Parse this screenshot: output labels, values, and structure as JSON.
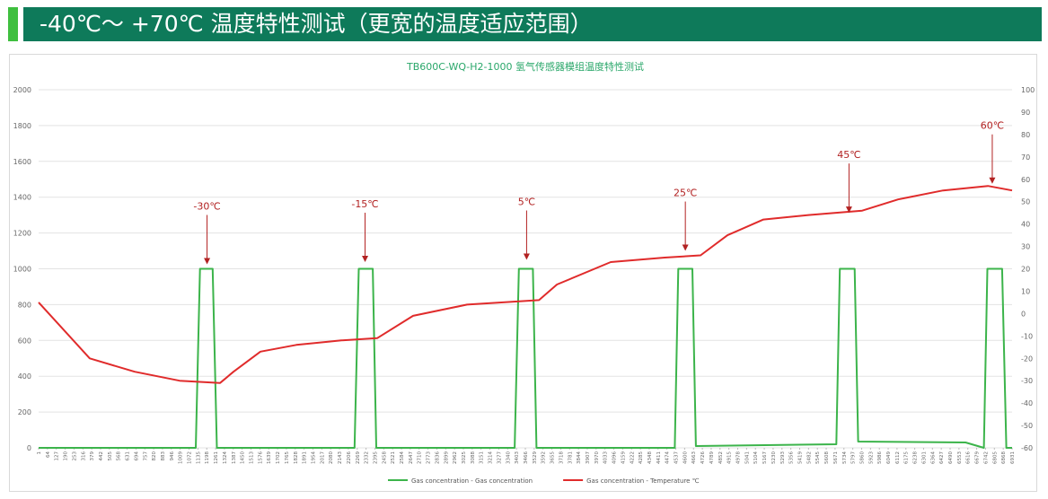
{
  "header": {
    "title": "-40℃～ +70℃ 温度特性测试（更宽的温度适应范围）"
  },
  "chart_data": {
    "type": "line",
    "title": "TB600C-WQ-H2-1000 氢气传感器模组温度特性测试",
    "title_color": "#2aa76a",
    "xlim": [
      1,
      6931
    ],
    "xticks": [
      1,
      64,
      127,
      190,
      253,
      316,
      379,
      442,
      505,
      568,
      631,
      694,
      757,
      820,
      883,
      946,
      1009,
      1072,
      1135,
      1198,
      1261,
      1324,
      1387,
      1450,
      1513,
      1576,
      1639,
      1702,
      1765,
      1828,
      1891,
      1954,
      2017,
      2080,
      2143,
      2206,
      2269,
      2332,
      2395,
      2458,
      2521,
      2584,
      2647,
      2710,
      2773,
      2836,
      2899,
      2962,
      3025,
      3088,
      3151,
      3214,
      3277,
      3340,
      3403,
      3466,
      3529,
      3592,
      3655,
      3718,
      3781,
      3844,
      3907,
      3970,
      4033,
      4096,
      4159,
      4222,
      4285,
      4348,
      4411,
      4474,
      4537,
      4600,
      4663,
      4726,
      4789,
      4852,
      4915,
      4978,
      5041,
      5104,
      5167,
      5230,
      5293,
      5356,
      5419,
      5482,
      5545,
      5608,
      5671,
      5734,
      5797,
      5860,
      5923,
      5986,
      6049,
      6112,
      6175,
      6238,
      6301,
      6364,
      6427,
      6490,
      6553,
      6616,
      6679,
      6742,
      6805,
      6868,
      6931
    ],
    "ylim": [
      0,
      2000
    ],
    "yticks": [
      0,
      200,
      400,
      600,
      800,
      1000,
      1200,
      1400,
      1600,
      1800,
      2000
    ],
    "y2lim": [
      -60,
      100
    ],
    "y2ticks": [
      -60,
      -50,
      -40,
      -30,
      -20,
      -10,
      0,
      10,
      20,
      30,
      40,
      50,
      60,
      70,
      80,
      90,
      100
    ],
    "grid": true,
    "legend": "bottom",
    "series": [
      {
        "name": "Gas concentration - Gas concentration",
        "color": "#3cb44b",
        "axis": "y",
        "x": [
          1,
          1120,
          1150,
          1240,
          1270,
          2250,
          2280,
          2380,
          2405,
          3390,
          3420,
          3520,
          3545,
          4530,
          4555,
          4655,
          4680,
          5680,
          5705,
          5810,
          5835,
          6600,
          6730,
          6755,
          6860,
          6890,
          6931
        ],
        "values": [
          0,
          0,
          1000,
          1000,
          0,
          0,
          1000,
          1000,
          0,
          0,
          1000,
          1000,
          0,
          0,
          1000,
          1000,
          10,
          20,
          1000,
          1000,
          35,
          30,
          0,
          1000,
          1000,
          0,
          0
        ]
      },
      {
        "name": "Gas concentration - Temperature ℃",
        "color": "#e02b2b",
        "axis": "y2",
        "x": [
          1,
          365,
          685,
          1005,
          1293,
          1388,
          1580,
          1836,
          2156,
          2411,
          2667,
          3051,
          3563,
          3691,
          4074,
          4458,
          4713,
          4905,
          5161,
          5481,
          5864,
          6120,
          6440,
          6759,
          6931
        ],
        "values": [
          5,
          -20,
          -26,
          -30,
          -31,
          -26,
          -17,
          -14,
          -12,
          -11,
          -1,
          4,
          6,
          13,
          23,
          25,
          26,
          35,
          42,
          44,
          46,
          51,
          55,
          57,
          55
        ]
      }
    ],
    "annotations": [
      {
        "text": "-30℃",
        "x": 1200,
        "y": 22
      },
      {
        "text": "-15℃",
        "x": 2325,
        "y": 23
      },
      {
        "text": "5℃",
        "x": 3475,
        "y": 24
      },
      {
        "text": "25℃",
        "x": 4605,
        "y": 28
      },
      {
        "text": "45℃",
        "x": 5770,
        "y": 45
      },
      {
        "text": "60℃",
        "x": 6790,
        "y": 58
      }
    ],
    "annotation_color": "#b22222"
  }
}
